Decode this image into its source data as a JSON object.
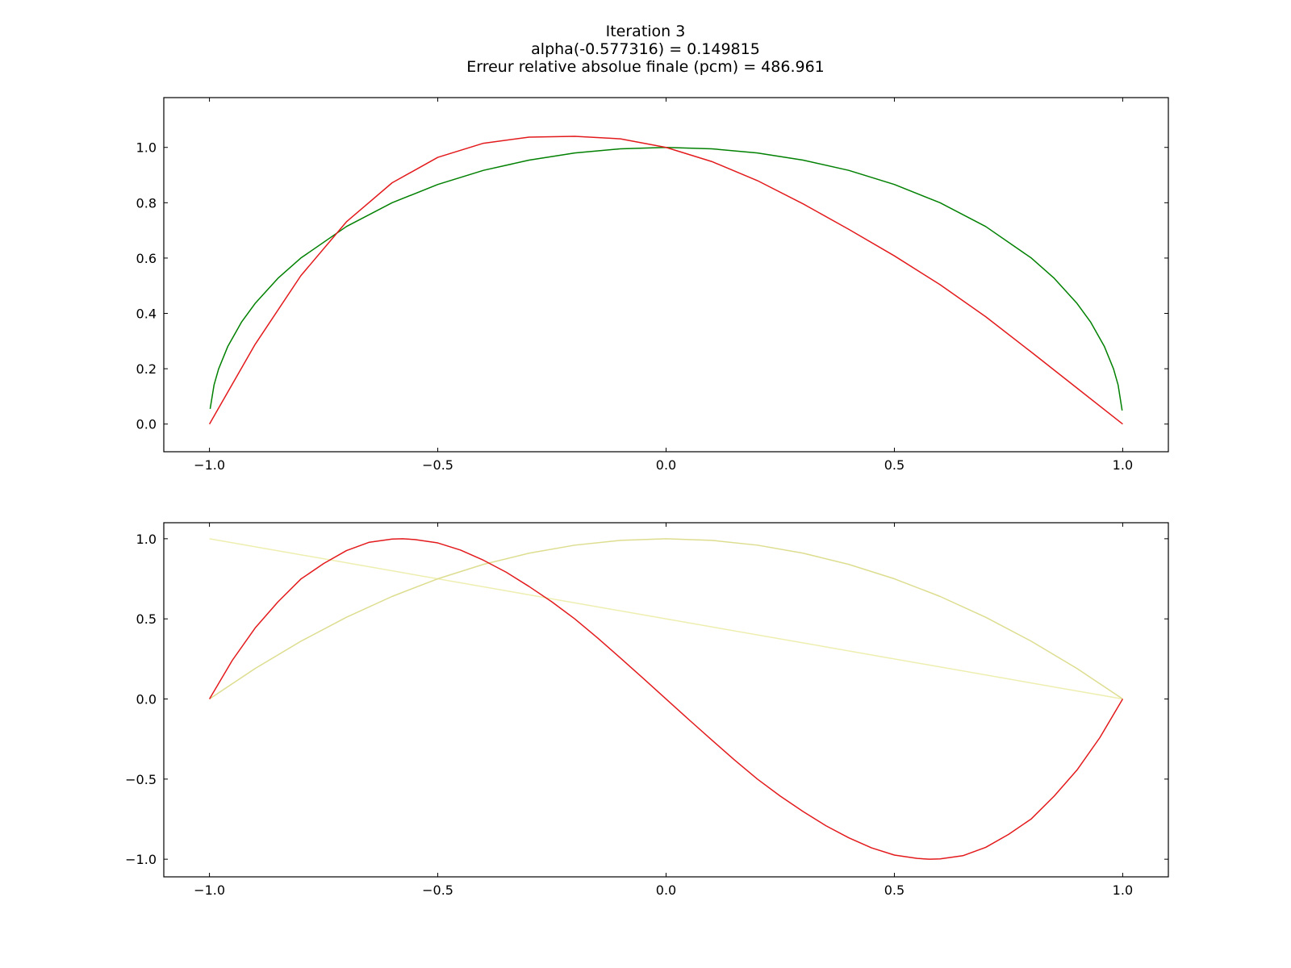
{
  "title_lines": [
    "Iteration 3",
    "alpha(-0.577316) = 0.149815",
    "Erreur relative absolue finale (pcm) = 486.961"
  ],
  "chart_data": [
    {
      "type": "line",
      "xlim": [
        -1.1,
        1.1
      ],
      "ylim": [
        -0.1,
        1.18
      ],
      "xticks": [
        -1.0,
        -0.5,
        0.0,
        0.5,
        1.0
      ],
      "xtick_labels": [
        "−1.0",
        "−0.5",
        "0.0",
        "0.5",
        "1.0"
      ],
      "yticks": [
        0.0,
        0.2,
        0.4,
        0.6,
        0.8,
        1.0
      ],
      "ytick_labels": [
        "0.0",
        "0.2",
        "0.4",
        "0.6",
        "0.8",
        "1.0"
      ],
      "grid": false,
      "series": [
        {
          "color": "#008000",
          "x": [
            -0.9985,
            -0.99,
            -0.98,
            -0.96,
            -0.93,
            -0.9,
            -0.85,
            -0.8,
            -0.7,
            -0.6,
            -0.5,
            -0.4,
            -0.3,
            -0.2,
            -0.1,
            0.0,
            0.1,
            0.2,
            0.3,
            0.4,
            0.5,
            0.6,
            0.7,
            0.8,
            0.85,
            0.9,
            0.93,
            0.96,
            0.98,
            0.99,
            0.9988
          ],
          "y": [
            0.055,
            0.141,
            0.199,
            0.28,
            0.368,
            0.436,
            0.527,
            0.6,
            0.714,
            0.8,
            0.866,
            0.917,
            0.954,
            0.98,
            0.995,
            1.0,
            0.995,
            0.98,
            0.954,
            0.917,
            0.866,
            0.8,
            0.714,
            0.6,
            0.527,
            0.436,
            0.368,
            0.28,
            0.199,
            0.141,
            0.049
          ]
        },
        {
          "color": "#e31a1c",
          "x": [
            -1.0,
            -0.9,
            -0.8,
            -0.7,
            -0.6,
            -0.5,
            -0.4,
            -0.3,
            -0.2,
            -0.1,
            0.0,
            0.1,
            0.2,
            0.3,
            0.4,
            0.5,
            0.6,
            0.7,
            0.8,
            0.9,
            1.0
          ],
          "y": [
            0.0,
            0.288,
            0.536,
            0.731,
            0.872,
            0.964,
            1.015,
            1.037,
            1.04,
            1.031,
            1.0,
            0.949,
            0.88,
            0.796,
            0.704,
            0.608,
            0.504,
            0.388,
            0.26,
            0.13,
            0.0
          ]
        }
      ]
    },
    {
      "type": "line",
      "xlim": [
        -1.1,
        1.1
      ],
      "ylim": [
        -1.11,
        1.1
      ],
      "xticks": [
        -1.0,
        -0.5,
        0.0,
        0.5,
        1.0
      ],
      "xtick_labels": [
        "−1.0",
        "−0.5",
        "0.0",
        "0.5",
        "1.0"
      ],
      "yticks": [
        -1.0,
        -0.5,
        0.0,
        0.5,
        1.0
      ],
      "ytick_labels": [
        "−1.0",
        "−0.5",
        "0.0",
        "0.5",
        "1.0"
      ],
      "grid": false,
      "series": [
        {
          "color": "#eeeeb0",
          "x": [
            -1.0,
            1.0
          ],
          "y": [
            1.0,
            0.0
          ]
        },
        {
          "color": "#dddd90",
          "x": [
            -1.0,
            -0.9,
            -0.8,
            -0.7,
            -0.6,
            -0.5,
            -0.4,
            -0.3,
            -0.2,
            -0.1,
            0.0,
            0.1,
            0.2,
            0.3,
            0.4,
            0.5,
            0.6,
            0.7,
            0.8,
            0.9,
            1.0
          ],
          "y": [
            0.0,
            0.19,
            0.36,
            0.51,
            0.64,
            0.75,
            0.84,
            0.91,
            0.96,
            0.99,
            1.0,
            0.99,
            0.96,
            0.91,
            0.84,
            0.75,
            0.64,
            0.51,
            0.36,
            0.19,
            0.0
          ]
        },
        {
          "color": "#e31a1c",
          "x": [
            -1.0,
            -0.95,
            -0.9,
            -0.85,
            -0.8,
            -0.75,
            -0.7,
            -0.65,
            -0.6,
            -0.577,
            -0.55,
            -0.5,
            -0.45,
            -0.4,
            -0.35,
            -0.3,
            -0.25,
            -0.2,
            -0.15,
            -0.1,
            -0.05,
            0.0,
            0.05,
            0.1,
            0.15,
            0.2,
            0.25,
            0.3,
            0.35,
            0.4,
            0.45,
            0.5,
            0.55,
            0.577,
            0.6,
            0.65,
            0.7,
            0.75,
            0.8,
            0.85,
            0.9,
            0.95,
            1.0
          ],
          "y": [
            0.0,
            0.241,
            0.443,
            0.606,
            0.748,
            0.845,
            0.926,
            0.978,
            0.998,
            1.0,
            0.995,
            0.974,
            0.929,
            0.866,
            0.791,
            0.702,
            0.606,
            0.5,
            0.381,
            0.256,
            0.129,
            0.0,
            -0.129,
            -0.256,
            -0.381,
            -0.5,
            -0.606,
            -0.702,
            -0.791,
            -0.866,
            -0.929,
            -0.974,
            -0.995,
            -1.0,
            -0.998,
            -0.978,
            -0.926,
            -0.845,
            -0.748,
            -0.606,
            -0.443,
            -0.241,
            0.0
          ]
        }
      ]
    }
  ]
}
